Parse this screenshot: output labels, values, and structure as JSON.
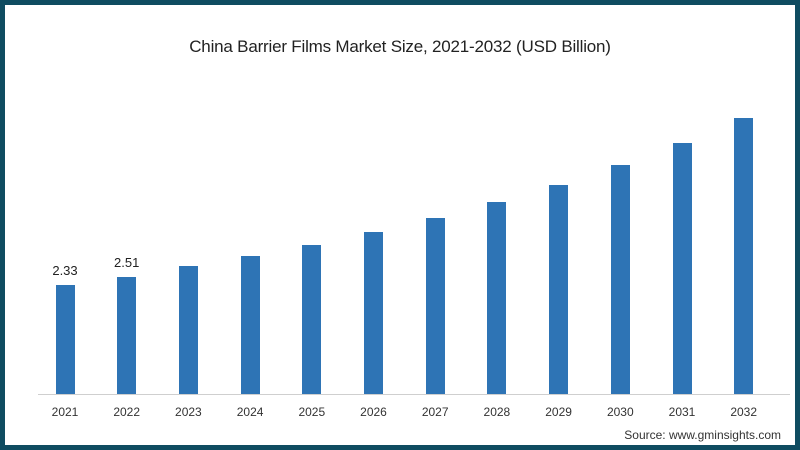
{
  "chart_data": {
    "type": "bar",
    "title": "China Barrier Films Market Size, 2021-2032 (USD Billion)",
    "xlabel": "",
    "ylabel": "USD Billion",
    "categories": [
      "2021",
      "2022",
      "2023",
      "2024",
      "2025",
      "2026",
      "2027",
      "2028",
      "2029",
      "2030",
      "2031",
      "2032"
    ],
    "values": [
      2.33,
      2.51,
      2.73,
      2.95,
      3.18,
      3.46,
      3.76,
      4.1,
      4.46,
      4.89,
      5.36,
      5.9
    ],
    "data_labels": {
      "0": "2.33",
      "1": "2.51"
    },
    "ylim": [
      0,
      6.5
    ],
    "grid": false,
    "legend": null,
    "bar_color": "#2e74b5"
  },
  "source": "Source: www.gminsights.com",
  "colors": {
    "frame": "#0f4c61",
    "bar": "#2e74b5",
    "background": "#ffffff"
  }
}
